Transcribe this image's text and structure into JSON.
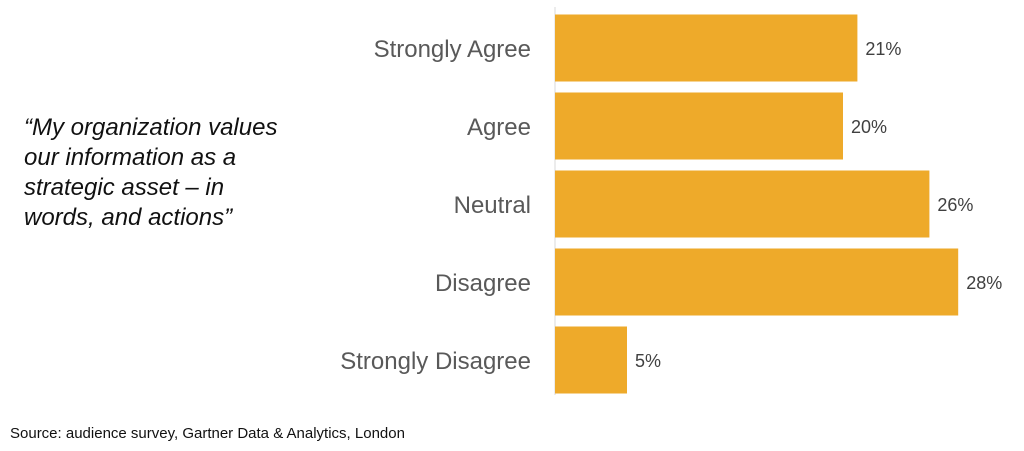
{
  "quote": "“My organization values\n our information as a\n strategic asset  – in\n words, and actions”",
  "source": "Source: audience survey, Gartner Data & Analytics, London",
  "colors": {
    "bar": "#EEAA2A",
    "axis": "#D9D9D9"
  },
  "chart_data": {
    "type": "bar",
    "orientation": "horizontal",
    "categories": [
      "Strongly Agree",
      "Agree",
      "Neutral",
      "Disagree",
      "Strongly Disagree"
    ],
    "values": [
      21,
      20,
      26,
      28,
      5
    ],
    "value_labels": [
      "21%",
      "20%",
      "26%",
      "28%",
      "5%"
    ],
    "unit": "%",
    "xlim": [
      0,
      30
    ],
    "grid": false,
    "legend": "none"
  }
}
